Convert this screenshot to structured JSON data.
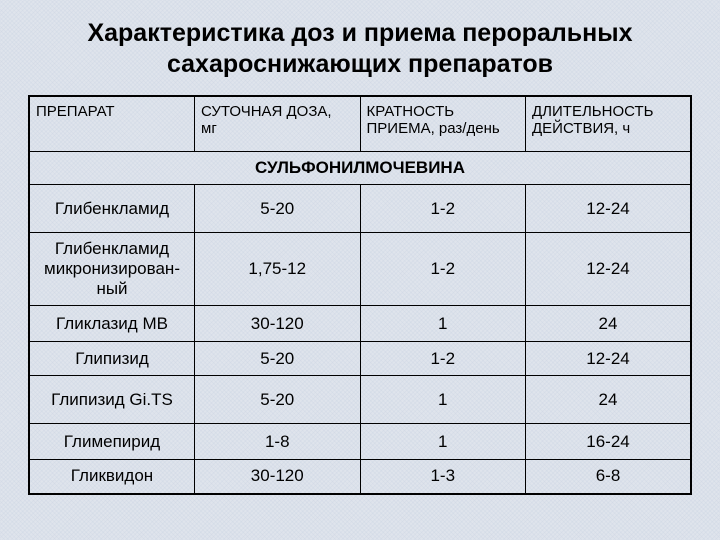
{
  "title_line1": "Характеристика доз и приема пероральных",
  "title_line2": "сахароснижающих препаратов",
  "headers": {
    "c0": "ПРЕПАРАТ",
    "c1a": "СУТОЧНАЯ ДОЗА,",
    "c1b": "мг",
    "c2a": "КРАТНОСТЬ",
    "c2b": "ПРИЕМА, раз/день",
    "c3a": "ДЛИТЕЛЬНОСТЬ",
    "c3b": "ДЕЙСТВИЯ, ч"
  },
  "section": "СУЛЬФОНИЛМОЧЕВИНА",
  "rows": [
    {
      "name": "Глибенкламид",
      "dose": "5-20",
      "freq": "1-2",
      "duration": "12-24"
    },
    {
      "name_l1": "Глибенкламид",
      "name_l2": "микронизирован-",
      "name_l3": "ный",
      "dose": "1,75-12",
      "freq": "1-2",
      "duration": "12-24"
    },
    {
      "name": "Гликлазид МВ",
      "dose": "30-120",
      "freq": "1",
      "duration": "24"
    },
    {
      "name": "Глипизид",
      "dose": "5-20",
      "freq": "1-2",
      "duration": "12-24"
    },
    {
      "name": "Глипизид Gi.TS",
      "dose": "5-20",
      "freq": "1",
      "duration": "24"
    },
    {
      "name": "Глимепирид",
      "dose": "1-8",
      "freq": "1",
      "duration": "16-24"
    },
    {
      "name": "Гликвидон",
      "dose": "30-120",
      "freq": "1-3",
      "duration": "6-8"
    }
  ],
  "style": {
    "background_color": "#dfe4ec",
    "text_color": "#000000",
    "border_color": "#000000",
    "title_fontsize": 25,
    "header_fontsize": 15,
    "cell_fontsize": 17,
    "font_family": "Arial"
  }
}
